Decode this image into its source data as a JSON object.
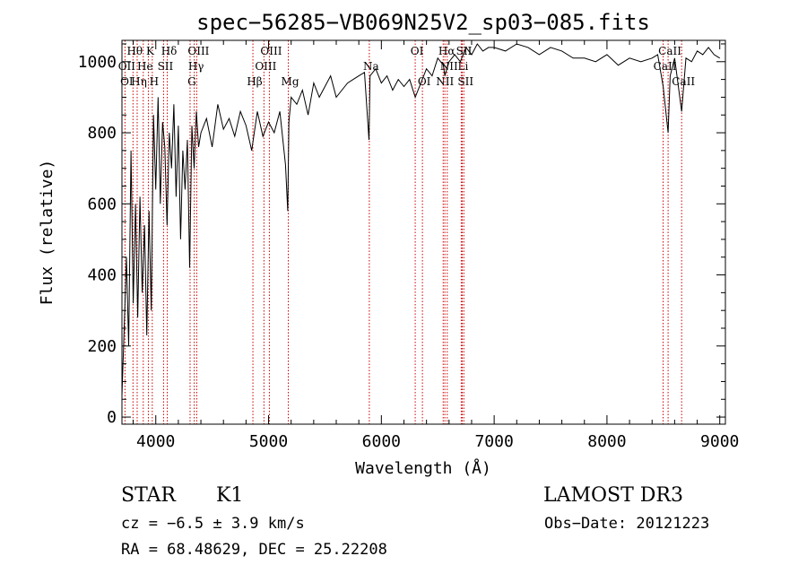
{
  "chart_data": {
    "type": "line",
    "title": "spec−56285−VB069N25V2_sp03−085.fits",
    "xlabel": "Wavelength (Å)",
    "ylabel": "Flux (relative)",
    "xlim": [
      3700,
      9050
    ],
    "ylim": [
      -20,
      1060
    ],
    "xticks": [
      4000,
      5000,
      6000,
      7000,
      8000,
      9000
    ],
    "xticks_minor_step": 200,
    "yticks": [
      0,
      200,
      400,
      600,
      800,
      1000
    ],
    "yticks_minor_step": 50,
    "grid": false,
    "series": [
      {
        "x": [
          3700,
          3720,
          3740,
          3760,
          3780,
          3800,
          3820,
          3840,
          3860,
          3880,
          3900,
          3920,
          3940,
          3960,
          3980,
          4000,
          4020,
          4040,
          4060,
          4080,
          4100,
          4120,
          4140,
          4160,
          4180,
          4200,
          4220,
          4240,
          4260,
          4280,
          4300,
          4320,
          4340,
          4360,
          4380,
          4400,
          4450,
          4500,
          4550,
          4600,
          4650,
          4700,
          4750,
          4800,
          4850,
          4900,
          4950,
          5000,
          5050,
          5100,
          5150,
          5170,
          5180,
          5200,
          5250,
          5300,
          5350,
          5400,
          5450,
          5500,
          5550,
          5600,
          5650,
          5700,
          5750,
          5800,
          5850,
          5890,
          5900,
          5950,
          6000,
          6050,
          6100,
          6150,
          6200,
          6250,
          6300,
          6350,
          6400,
          6450,
          6500,
          6550,
          6563,
          6600,
          6650,
          6700,
          6750,
          6800,
          6850,
          6900,
          6950,
          7000,
          7100,
          7200,
          7300,
          7400,
          7500,
          7600,
          7700,
          7800,
          7900,
          8000,
          8100,
          8200,
          8300,
          8400,
          8450,
          8498,
          8542,
          8560,
          8600,
          8662,
          8700,
          8750,
          8800,
          8850,
          8900,
          8950,
          9000
        ],
        "values": [
          60,
          250,
          450,
          200,
          750,
          320,
          600,
          280,
          620,
          350,
          540,
          230,
          580,
          300,
          850,
          640,
          900,
          600,
          830,
          760,
          540,
          800,
          700,
          880,
          620,
          820,
          500,
          750,
          640,
          780,
          420,
          820,
          700,
          860,
          760,
          800,
          840,
          760,
          880,
          810,
          840,
          790,
          860,
          820,
          750,
          860,
          790,
          830,
          800,
          860,
          710,
          580,
          830,
          900,
          880,
          920,
          850,
          940,
          900,
          930,
          960,
          900,
          920,
          940,
          950,
          960,
          970,
          780,
          960,
          980,
          940,
          960,
          920,
          950,
          930,
          950,
          900,
          940,
          980,
          960,
          1010,
          990,
          960,
          1000,
          1020,
          1000,
          1040,
          1020,
          1050,
          1030,
          1040,
          1040,
          1030,
          1050,
          1040,
          1020,
          1040,
          1030,
          1010,
          1010,
          1000,
          1020,
          990,
          1010,
          1000,
          1010,
          1020,
          930,
          800,
          960,
          1010,
          860,
          1010,
          1000,
          1030,
          1020,
          1040,
          1020,
          1010
        ]
      }
    ],
    "line_labels": [
      {
        "label": "Hθ",
        "x": 3798,
        "row": 0
      },
      {
        "label": "K",
        "x": 3934,
        "row": 0
      },
      {
        "label": "Hδ",
        "x": 4102,
        "row": 0
      },
      {
        "label": "OIII",
        "x": 4363,
        "row": 0
      },
      {
        "label": "OIII",
        "x": 5007,
        "row": 0
      },
      {
        "label": "OI",
        "x": 6300,
        "row": 0
      },
      {
        "label": "Hα",
        "x": 6563,
        "row": 0
      },
      {
        "label": "SII",
        "x": 6717,
        "row": 0
      },
      {
        "label": "CaII",
        "x": 8542,
        "row": 0
      },
      {
        "label": "OII",
        "x": 3727,
        "row": 1
      },
      {
        "label": "He",
        "x": 3889,
        "row": 1
      },
      {
        "label": "SII",
        "x": 4069,
        "row": 1
      },
      {
        "label": "Hγ",
        "x": 4341,
        "row": 1
      },
      {
        "label": "OIII",
        "x": 4959,
        "row": 1
      },
      {
        "label": "Na",
        "x": 5893,
        "row": 1
      },
      {
        "label": "NII",
        "x": 6584,
        "row": 1
      },
      {
        "label": "Li",
        "x": 6708,
        "row": 1
      },
      {
        "label": "CaII",
        "x": 8498,
        "row": 1
      },
      {
        "label": "OI",
        "x": 3727,
        "row": 2
      },
      {
        "label": "Hη",
        "x": 3835,
        "row": 2
      },
      {
        "label": "H",
        "x": 3969,
        "row": 2
      },
      {
        "label": "G",
        "x": 4304,
        "row": 2
      },
      {
        "label": "Hβ",
        "x": 4861,
        "row": 2
      },
      {
        "label": "Mg",
        "x": 5175,
        "row": 2
      },
      {
        "label": "OI",
        "x": 6364,
        "row": 2
      },
      {
        "label": "NII",
        "x": 6548,
        "row": 2
      },
      {
        "label": "SII",
        "x": 6731,
        "row": 2
      },
      {
        "label": "CaII",
        "x": 8662,
        "row": 2
      }
    ],
    "line_positions": [
      3727,
      3798,
      3835,
      3889,
      3934,
      3969,
      4069,
      4102,
      4304,
      4341,
      4363,
      4861,
      4959,
      5007,
      5175,
      5893,
      6300,
      6364,
      6548,
      6563,
      6584,
      6708,
      6717,
      6731,
      8498,
      8542,
      8662
    ]
  },
  "info": {
    "object_class": "STAR",
    "subclass": "K1",
    "survey": "LAMOST DR3",
    "cz": "cz = −6.5 ± 3.9 km/s",
    "obs_date": "Obs−Date: 20121223",
    "coords": "RA =  68.48629, DEC =  25.22208"
  },
  "colors": {
    "spectrum": "#000000",
    "line_marker": "#cc0000",
    "axes": "#000000"
  }
}
